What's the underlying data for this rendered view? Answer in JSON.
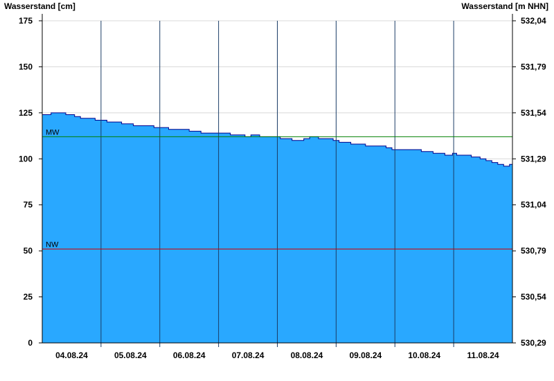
{
  "chart_data": {
    "type": "area",
    "ylabel_left": "Wasserstand [cm]",
    "ylabel_right": "Wasserstand [m NHN]",
    "ylim": [
      0,
      175
    ],
    "y_ticks_left": [
      "0",
      "25",
      "50",
      "75",
      "100",
      "125",
      "150",
      "175"
    ],
    "y_tick_values": [
      0,
      25,
      50,
      75,
      100,
      125,
      150,
      175
    ],
    "y_ticks_right": [
      "530,29",
      "530,54",
      "530,79",
      "531,04",
      "531,29",
      "531,54",
      "531,79",
      "532,04"
    ],
    "x_tick_labels": [
      "04.08.24",
      "05.08.24",
      "06.08.24",
      "07.08.24",
      "08.08.24",
      "09.08.24",
      "10.08.24",
      "11.08.24"
    ],
    "reference_lines": [
      {
        "label": "MW",
        "value": 112,
        "color": "#008000"
      },
      {
        "label": "NW",
        "value": 51,
        "color": "#d00000"
      }
    ],
    "fill_color": "#29a8ff",
    "line_color": "#00008b",
    "series": [
      {
        "x_days": [
          0,
          0.15,
          0.15,
          0.4,
          0.4,
          0.55,
          0.55,
          0.65,
          0.65,
          0.9,
          0.9,
          1.1,
          1.1,
          1.35,
          1.35,
          1.55,
          1.55,
          1.9,
          1.9,
          2.15,
          2.15,
          2.5,
          2.5,
          2.7,
          2.7,
          3.2,
          3.2,
          3.45,
          3.45,
          3.55,
          3.55,
          3.7,
          3.7,
          4.05,
          4.05,
          4.25,
          4.25,
          4.45,
          4.45,
          4.55,
          4.55,
          4.7,
          4.7,
          4.95,
          4.95,
          5.05,
          5.05,
          5.25,
          5.25,
          5.5,
          5.5,
          5.85,
          5.85,
          5.95,
          5.95,
          6.45,
          6.45,
          6.65,
          6.65,
          6.85,
          6.85,
          6.98,
          6.98,
          7.05,
          7.05,
          7.3,
          7.3,
          7.45,
          7.45,
          7.55,
          7.55,
          7.65,
          7.65,
          7.75,
          7.75,
          7.85,
          7.85,
          7.95,
          7.95,
          8.0
        ],
        "values": [
          124,
          124,
          125,
          125,
          124,
          124,
          123,
          123,
          122,
          122,
          121,
          121,
          120,
          120,
          119,
          119,
          118,
          118,
          117,
          117,
          116,
          116,
          115,
          115,
          114,
          114,
          113,
          113,
          112,
          112,
          113,
          113,
          112,
          112,
          111,
          111,
          110,
          110,
          111,
          111,
          112,
          112,
          111,
          111,
          110,
          110,
          109,
          109,
          108,
          108,
          107,
          107,
          106,
          106,
          105,
          105,
          104,
          104,
          103,
          103,
          102,
          102,
          103,
          103,
          102,
          102,
          101,
          101,
          100,
          100,
          99,
          99,
          98,
          98,
          97,
          97,
          96,
          96,
          97,
          97
        ]
      }
    ]
  }
}
